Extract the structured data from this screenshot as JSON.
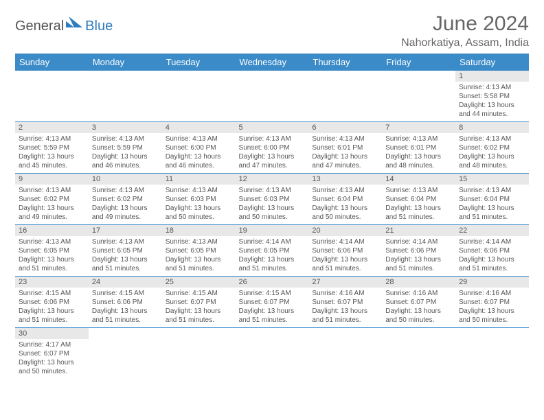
{
  "brand": {
    "part1": "General",
    "part2": "Blue"
  },
  "title": "June 2024",
  "location": "Nahorkatiya, Assam, India",
  "colors": {
    "header_bg": "#3b8bc8",
    "header_text": "#ffffff",
    "daynum_bg": "#e8e8e8",
    "text": "#555555",
    "row_divider": "#3b8bc8",
    "background": "#ffffff"
  },
  "typography": {
    "title_fontsize": 30,
    "location_fontsize": 16,
    "dayheader_fontsize": 13,
    "daynum_fontsize": 11,
    "body_fontsize": 10
  },
  "day_headers": [
    "Sunday",
    "Monday",
    "Tuesday",
    "Wednesday",
    "Thursday",
    "Friday",
    "Saturday"
  ],
  "weeks": [
    [
      {
        "n": "",
        "sr": "",
        "ss": "",
        "dl": ""
      },
      {
        "n": "",
        "sr": "",
        "ss": "",
        "dl": ""
      },
      {
        "n": "",
        "sr": "",
        "ss": "",
        "dl": ""
      },
      {
        "n": "",
        "sr": "",
        "ss": "",
        "dl": ""
      },
      {
        "n": "",
        "sr": "",
        "ss": "",
        "dl": ""
      },
      {
        "n": "",
        "sr": "",
        "ss": "",
        "dl": ""
      },
      {
        "n": "1",
        "sr": "Sunrise: 4:13 AM",
        "ss": "Sunset: 5:58 PM",
        "dl": "Daylight: 13 hours and 44 minutes."
      }
    ],
    [
      {
        "n": "2",
        "sr": "Sunrise: 4:13 AM",
        "ss": "Sunset: 5:59 PM",
        "dl": "Daylight: 13 hours and 45 minutes."
      },
      {
        "n": "3",
        "sr": "Sunrise: 4:13 AM",
        "ss": "Sunset: 5:59 PM",
        "dl": "Daylight: 13 hours and 46 minutes."
      },
      {
        "n": "4",
        "sr": "Sunrise: 4:13 AM",
        "ss": "Sunset: 6:00 PM",
        "dl": "Daylight: 13 hours and 46 minutes."
      },
      {
        "n": "5",
        "sr": "Sunrise: 4:13 AM",
        "ss": "Sunset: 6:00 PM",
        "dl": "Daylight: 13 hours and 47 minutes."
      },
      {
        "n": "6",
        "sr": "Sunrise: 4:13 AM",
        "ss": "Sunset: 6:01 PM",
        "dl": "Daylight: 13 hours and 47 minutes."
      },
      {
        "n": "7",
        "sr": "Sunrise: 4:13 AM",
        "ss": "Sunset: 6:01 PM",
        "dl": "Daylight: 13 hours and 48 minutes."
      },
      {
        "n": "8",
        "sr": "Sunrise: 4:13 AM",
        "ss": "Sunset: 6:02 PM",
        "dl": "Daylight: 13 hours and 48 minutes."
      }
    ],
    [
      {
        "n": "9",
        "sr": "Sunrise: 4:13 AM",
        "ss": "Sunset: 6:02 PM",
        "dl": "Daylight: 13 hours and 49 minutes."
      },
      {
        "n": "10",
        "sr": "Sunrise: 4:13 AM",
        "ss": "Sunset: 6:02 PM",
        "dl": "Daylight: 13 hours and 49 minutes."
      },
      {
        "n": "11",
        "sr": "Sunrise: 4:13 AM",
        "ss": "Sunset: 6:03 PM",
        "dl": "Daylight: 13 hours and 50 minutes."
      },
      {
        "n": "12",
        "sr": "Sunrise: 4:13 AM",
        "ss": "Sunset: 6:03 PM",
        "dl": "Daylight: 13 hours and 50 minutes."
      },
      {
        "n": "13",
        "sr": "Sunrise: 4:13 AM",
        "ss": "Sunset: 6:04 PM",
        "dl": "Daylight: 13 hours and 50 minutes."
      },
      {
        "n": "14",
        "sr": "Sunrise: 4:13 AM",
        "ss": "Sunset: 6:04 PM",
        "dl": "Daylight: 13 hours and 51 minutes."
      },
      {
        "n": "15",
        "sr": "Sunrise: 4:13 AM",
        "ss": "Sunset: 6:04 PM",
        "dl": "Daylight: 13 hours and 51 minutes."
      }
    ],
    [
      {
        "n": "16",
        "sr": "Sunrise: 4:13 AM",
        "ss": "Sunset: 6:05 PM",
        "dl": "Daylight: 13 hours and 51 minutes."
      },
      {
        "n": "17",
        "sr": "Sunrise: 4:13 AM",
        "ss": "Sunset: 6:05 PM",
        "dl": "Daylight: 13 hours and 51 minutes."
      },
      {
        "n": "18",
        "sr": "Sunrise: 4:13 AM",
        "ss": "Sunset: 6:05 PM",
        "dl": "Daylight: 13 hours and 51 minutes."
      },
      {
        "n": "19",
        "sr": "Sunrise: 4:14 AM",
        "ss": "Sunset: 6:05 PM",
        "dl": "Daylight: 13 hours and 51 minutes."
      },
      {
        "n": "20",
        "sr": "Sunrise: 4:14 AM",
        "ss": "Sunset: 6:06 PM",
        "dl": "Daylight: 13 hours and 51 minutes."
      },
      {
        "n": "21",
        "sr": "Sunrise: 4:14 AM",
        "ss": "Sunset: 6:06 PM",
        "dl": "Daylight: 13 hours and 51 minutes."
      },
      {
        "n": "22",
        "sr": "Sunrise: 4:14 AM",
        "ss": "Sunset: 6:06 PM",
        "dl": "Daylight: 13 hours and 51 minutes."
      }
    ],
    [
      {
        "n": "23",
        "sr": "Sunrise: 4:15 AM",
        "ss": "Sunset: 6:06 PM",
        "dl": "Daylight: 13 hours and 51 minutes."
      },
      {
        "n": "24",
        "sr": "Sunrise: 4:15 AM",
        "ss": "Sunset: 6:06 PM",
        "dl": "Daylight: 13 hours and 51 minutes."
      },
      {
        "n": "25",
        "sr": "Sunrise: 4:15 AM",
        "ss": "Sunset: 6:07 PM",
        "dl": "Daylight: 13 hours and 51 minutes."
      },
      {
        "n": "26",
        "sr": "Sunrise: 4:15 AM",
        "ss": "Sunset: 6:07 PM",
        "dl": "Daylight: 13 hours and 51 minutes."
      },
      {
        "n": "27",
        "sr": "Sunrise: 4:16 AM",
        "ss": "Sunset: 6:07 PM",
        "dl": "Daylight: 13 hours and 51 minutes."
      },
      {
        "n": "28",
        "sr": "Sunrise: 4:16 AM",
        "ss": "Sunset: 6:07 PM",
        "dl": "Daylight: 13 hours and 50 minutes."
      },
      {
        "n": "29",
        "sr": "Sunrise: 4:16 AM",
        "ss": "Sunset: 6:07 PM",
        "dl": "Daylight: 13 hours and 50 minutes."
      }
    ],
    [
      {
        "n": "30",
        "sr": "Sunrise: 4:17 AM",
        "ss": "Sunset: 6:07 PM",
        "dl": "Daylight: 13 hours and 50 minutes."
      },
      {
        "n": "",
        "sr": "",
        "ss": "",
        "dl": ""
      },
      {
        "n": "",
        "sr": "",
        "ss": "",
        "dl": ""
      },
      {
        "n": "",
        "sr": "",
        "ss": "",
        "dl": ""
      },
      {
        "n": "",
        "sr": "",
        "ss": "",
        "dl": ""
      },
      {
        "n": "",
        "sr": "",
        "ss": "",
        "dl": ""
      },
      {
        "n": "",
        "sr": "",
        "ss": "",
        "dl": ""
      }
    ]
  ]
}
